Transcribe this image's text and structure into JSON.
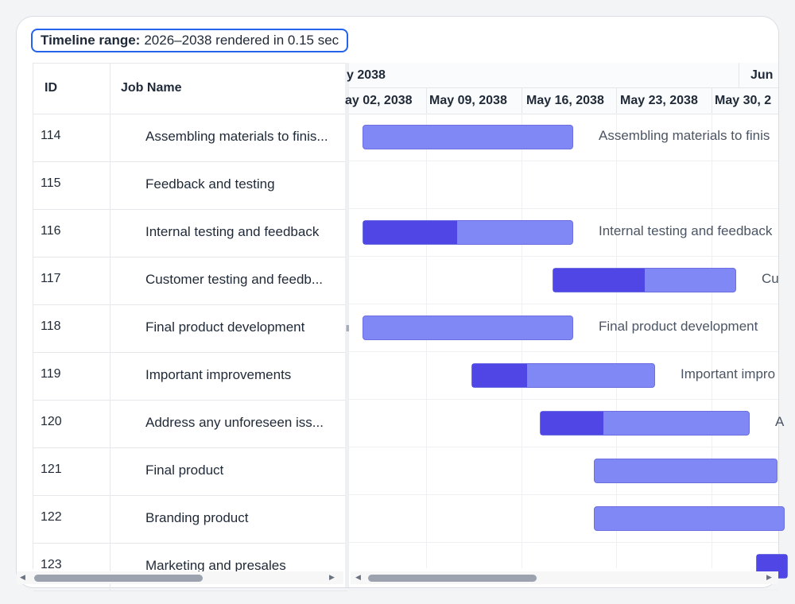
{
  "range_badge": {
    "label": "Timeline range:",
    "value": "2026–2038 rendered in 0.15 sec"
  },
  "grid": {
    "columns": {
      "id": "ID",
      "name": "Job Name"
    },
    "rows": [
      {
        "id": "114",
        "name": "Assembling materials to finis..."
      },
      {
        "id": "115",
        "name": "Feedback and testing"
      },
      {
        "id": "116",
        "name": "Internal testing and feedback"
      },
      {
        "id": "117",
        "name": "Customer testing and feedb..."
      },
      {
        "id": "118",
        "name": "Final product development"
      },
      {
        "id": "119",
        "name": "Important improvements"
      },
      {
        "id": "120",
        "name": "Address any unforeseen iss..."
      },
      {
        "id": "121",
        "name": "Final product"
      },
      {
        "id": "122",
        "name": "Branding product"
      },
      {
        "id": "123",
        "name": "Marketing and presales"
      }
    ]
  },
  "timeline": {
    "months": [
      "y 2038",
      "Jun"
    ],
    "weeks": [
      "ay 02, 2038",
      "May 09, 2038",
      "May 16, 2038",
      "May 23, 2038",
      "May 30, 2"
    ]
  },
  "tasks": [
    {
      "id": "114",
      "label": "Assembling materials to finis",
      "progress": 0
    },
    {
      "id": "115",
      "label": "",
      "progress": null
    },
    {
      "id": "116",
      "label": "Internal testing and feedback",
      "progress": 0.45
    },
    {
      "id": "117",
      "label": "Cu",
      "progress": 0.5
    },
    {
      "id": "118",
      "label": "Final product development",
      "progress": 0
    },
    {
      "id": "119",
      "label": "Important impro",
      "progress": 0.3
    },
    {
      "id": "120",
      "label": "A",
      "progress": 0.3
    },
    {
      "id": "121",
      "label": "",
      "progress": 0
    },
    {
      "id": "122",
      "label": "",
      "progress": 0
    },
    {
      "id": "123",
      "label": "",
      "progress": 1
    }
  ],
  "colors": {
    "bar": "#8088f5",
    "progress": "#4f46e5",
    "badge_border": "#2563eb"
  },
  "icons": {
    "splitter": "drag-handle-icon",
    "scroll_left": "arrow-left-icon",
    "scroll_right": "arrow-right-icon"
  }
}
